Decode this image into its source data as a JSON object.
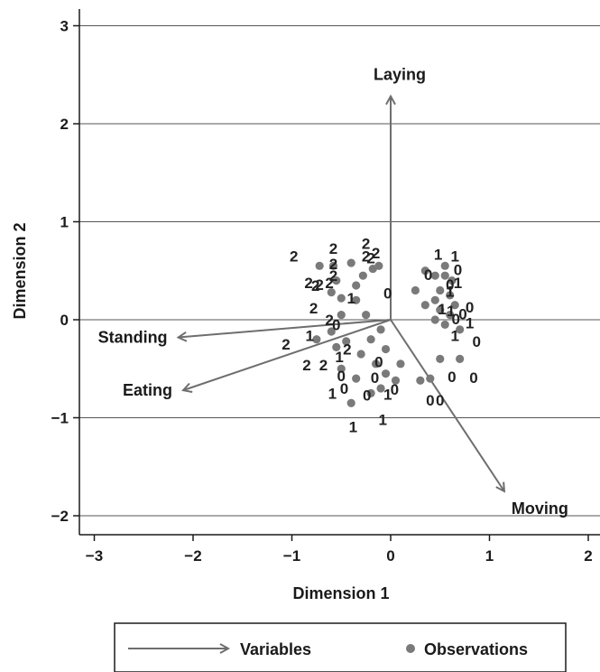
{
  "chart_data": {
    "type": "scatter",
    "title": "",
    "xlabel": "Dimension 1",
    "ylabel": "Dimension 2",
    "xlim": [
      -3.2,
      2.1
    ],
    "ylim": [
      -2.15,
      3.2
    ],
    "x_ticks": [
      -3,
      -2,
      -1,
      0,
      1,
      2
    ],
    "y_ticks": [
      -2,
      -1,
      0,
      1,
      2,
      3
    ],
    "x_tick_labels": [
      "−3",
      "−2",
      "−1",
      "0",
      "1",
      "2"
    ],
    "y_tick_labels": [
      "−2",
      "−1",
      "0",
      "1",
      "2",
      "3"
    ],
    "grid": "horizontal",
    "legend_position": "bottom",
    "legend": {
      "variables_label": "Variables",
      "observations_label": "Observations"
    },
    "colors": {
      "arrow": "#6e6e6e",
      "observation": "#7a7a7a",
      "grid": "#555555",
      "text": "#1a1a1a"
    },
    "variables": [
      {
        "name": "Laying",
        "x": 0.0,
        "y": 2.28
      },
      {
        "name": "Standing",
        "x": -2.15,
        "y": -0.18
      },
      {
        "name": "Eating",
        "x": -2.1,
        "y": -0.72
      },
      {
        "name": "Moving",
        "x": 1.15,
        "y": -1.75
      }
    ],
    "observations": [
      {
        "x": -0.72,
        "y": 0.55
      },
      {
        "x": -0.58,
        "y": 0.55
      },
      {
        "x": -0.55,
        "y": 0.4
      },
      {
        "x": -0.6,
        "y": 0.28
      },
      {
        "x": -0.5,
        "y": 0.22
      },
      {
        "x": -0.35,
        "y": 0.35
      },
      {
        "x": -0.28,
        "y": 0.45
      },
      {
        "x": -0.18,
        "y": 0.52
      },
      {
        "x": -0.12,
        "y": 0.55
      },
      {
        "x": -0.35,
        "y": 0.2
      },
      {
        "x": -0.25,
        "y": 0.05
      },
      {
        "x": -0.5,
        "y": 0.05
      },
      {
        "x": -0.6,
        "y": -0.12
      },
      {
        "x": -0.55,
        "y": -0.28
      },
      {
        "x": -0.45,
        "y": -0.22
      },
      {
        "x": -0.3,
        "y": -0.35
      },
      {
        "x": -0.2,
        "y": -0.2
      },
      {
        "x": -0.1,
        "y": -0.1
      },
      {
        "x": -0.05,
        "y": -0.3
      },
      {
        "x": -0.15,
        "y": -0.45
      },
      {
        "x": -0.05,
        "y": -0.55
      },
      {
        "x": 0.1,
        "y": -0.45
      },
      {
        "x": 0.05,
        "y": -0.62
      },
      {
        "x": -0.2,
        "y": -0.75
      },
      {
        "x": -0.35,
        "y": -0.6
      },
      {
        "x": -0.5,
        "y": -0.5
      },
      {
        "x": -0.4,
        "y": -0.85
      },
      {
        "x": -0.1,
        "y": -0.7
      },
      {
        "x": -0.75,
        "y": -0.2
      },
      {
        "x": -0.4,
        "y": 0.58
      },
      {
        "x": 0.25,
        "y": 0.3
      },
      {
        "x": 0.35,
        "y": 0.5
      },
      {
        "x": 0.45,
        "y": 0.45
      },
      {
        "x": 0.5,
        "y": 0.3
      },
      {
        "x": 0.55,
        "y": 0.45
      },
      {
        "x": 0.6,
        "y": 0.25
      },
      {
        "x": 0.45,
        "y": 0.2
      },
      {
        "x": 0.35,
        "y": 0.15
      },
      {
        "x": 0.5,
        "y": 0.1
      },
      {
        "x": 0.6,
        "y": 0.05
      },
      {
        "x": 0.65,
        "y": 0.15
      },
      {
        "x": 0.7,
        "y": -0.1
      },
      {
        "x": 0.55,
        "y": -0.05
      },
      {
        "x": 0.45,
        "y": 0.0
      },
      {
        "x": 0.5,
        "y": -0.4
      },
      {
        "x": 0.7,
        "y": -0.4
      },
      {
        "x": 0.4,
        "y": -0.6
      },
      {
        "x": 0.3,
        "y": -0.62
      },
      {
        "x": 0.55,
        "y": 0.55
      },
      {
        "x": 0.62,
        "y": 0.4
      }
    ],
    "observation_labels": [
      {
        "text": "2",
        "x": -0.98,
        "y": 0.65
      },
      {
        "text": "2",
        "x": -0.58,
        "y": 0.73
      },
      {
        "text": "2",
        "x": -0.58,
        "y": 0.57
      },
      {
        "text": "2",
        "x": -0.58,
        "y": 0.45
      },
      {
        "text": "2",
        "x": -0.83,
        "y": 0.38
      },
      {
        "text": "2",
        "x": -0.76,
        "y": 0.35
      },
      {
        "text": "2",
        "x": -0.72,
        "y": 0.36
      },
      {
        "text": "2",
        "x": -0.62,
        "y": 0.38
      },
      {
        "text": "2",
        "x": -0.25,
        "y": 0.78
      },
      {
        "text": "2",
        "x": -0.25,
        "y": 0.65
      },
      {
        "text": "2",
        "x": -0.2,
        "y": 0.63
      },
      {
        "text": "2",
        "x": -0.15,
        "y": 0.68
      },
      {
        "text": "1",
        "x": -0.4,
        "y": 0.22
      },
      {
        "text": "0",
        "x": -0.03,
        "y": 0.27
      },
      {
        "text": "2",
        "x": -0.78,
        "y": 0.12
      },
      {
        "text": "2",
        "x": -0.62,
        "y": 0.0
      },
      {
        "text": "0",
        "x": -0.55,
        "y": -0.05
      },
      {
        "text": "1",
        "x": -0.82,
        "y": -0.16
      },
      {
        "text": "2",
        "x": -1.06,
        "y": -0.25
      },
      {
        "text": "2",
        "x": -0.85,
        "y": -0.46
      },
      {
        "text": "2",
        "x": -0.68,
        "y": -0.46
      },
      {
        "text": "1",
        "x": -0.52,
        "y": -0.38
      },
      {
        "text": "2",
        "x": -0.44,
        "y": -0.3
      },
      {
        "text": "0",
        "x": -0.12,
        "y": -0.43
      },
      {
        "text": "0",
        "x": -0.5,
        "y": -0.57
      },
      {
        "text": "0",
        "x": -0.16,
        "y": -0.59
      },
      {
        "text": "1",
        "x": -0.59,
        "y": -0.75
      },
      {
        "text": "0",
        "x": -0.47,
        "y": -0.7
      },
      {
        "text": "0",
        "x": -0.24,
        "y": -0.77
      },
      {
        "text": "1",
        "x": -0.03,
        "y": -0.76
      },
      {
        "text": "0",
        "x": 0.04,
        "y": -0.71
      },
      {
        "text": "1",
        "x": -0.38,
        "y": -1.09
      },
      {
        "text": "1",
        "x": -0.08,
        "y": -1.02
      },
      {
        "text": "1",
        "x": 0.48,
        "y": 0.67
      },
      {
        "text": "1",
        "x": 0.65,
        "y": 0.65
      },
      {
        "text": "0",
        "x": 0.38,
        "y": 0.46
      },
      {
        "text": "0",
        "x": 0.68,
        "y": 0.51
      },
      {
        "text": "0",
        "x": 0.6,
        "y": 0.36
      },
      {
        "text": "1",
        "x": 0.68,
        "y": 0.38
      },
      {
        "text": "1",
        "x": 0.6,
        "y": 0.29
      },
      {
        "text": "0",
        "x": 0.8,
        "y": 0.13
      },
      {
        "text": "1",
        "x": 0.52,
        "y": 0.11
      },
      {
        "text": "1",
        "x": 0.61,
        "y": 0.09
      },
      {
        "text": "0",
        "x": 0.73,
        "y": 0.06
      },
      {
        "text": "0",
        "x": 0.66,
        "y": 0.01
      },
      {
        "text": "1",
        "x": 0.8,
        "y": -0.03
      },
      {
        "text": "1",
        "x": 0.65,
        "y": -0.16
      },
      {
        "text": "0",
        "x": 0.87,
        "y": -0.22
      },
      {
        "text": "0",
        "x": 0.62,
        "y": -0.58
      },
      {
        "text": "0",
        "x": 0.84,
        "y": -0.59
      },
      {
        "text": "0",
        "x": 0.4,
        "y": -0.82
      },
      {
        "text": "0",
        "x": 0.5,
        "y": -0.82
      }
    ]
  }
}
